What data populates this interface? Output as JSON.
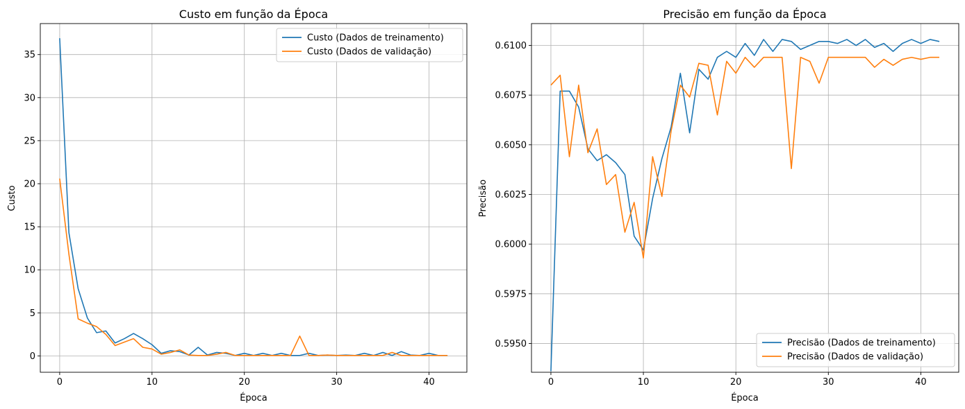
{
  "colors": {
    "train": "#1f77b4",
    "val": "#ff7f0e",
    "grid": "#b0b0b0",
    "axis": "#000000"
  },
  "chart_data": [
    {
      "type": "line",
      "title": "Custo em função da Época",
      "xlabel": "Época",
      "ylabel": "Custo",
      "xlim": [
        -2.1,
        44.1
      ],
      "ylim": [
        -1.9,
        38.6
      ],
      "xticks": [
        0,
        10,
        20,
        30,
        40
      ],
      "yticks": [
        0,
        5,
        10,
        15,
        20,
        25,
        30,
        35
      ],
      "grid": true,
      "legend_position": "upper right",
      "series": [
        {
          "name": "Custo (Dados de treinamento)",
          "color": "#1f77b4",
          "x": [
            0,
            1,
            2,
            3,
            4,
            5,
            6,
            7,
            8,
            9,
            10,
            11,
            12,
            13,
            14,
            15,
            16,
            17,
            18,
            19,
            20,
            21,
            22,
            23,
            24,
            25,
            26,
            27,
            28,
            29,
            30,
            31,
            32,
            33,
            34,
            35,
            36,
            37,
            38,
            39,
            40,
            41,
            42
          ],
          "y": [
            36.9,
            14.3,
            7.8,
            4.4,
            2.7,
            2.9,
            1.5,
            2.0,
            2.6,
            2.0,
            1.3,
            0.3,
            0.6,
            0.5,
            0.1,
            1.0,
            0.1,
            0.4,
            0.3,
            0.05,
            0.3,
            0.05,
            0.3,
            0.05,
            0.3,
            0.05,
            0.05,
            0.3,
            0.05,
            0.1,
            0.05,
            0.1,
            0.05,
            0.3,
            0.05,
            0.4,
            0.05,
            0.5,
            0.1,
            0.05,
            0.3,
            0.05,
            0.05
          ]
        },
        {
          "name": "Custo (Dados de validação)",
          "color": "#ff7f0e",
          "x": [
            0,
            1,
            2,
            3,
            4,
            5,
            6,
            7,
            8,
            9,
            10,
            11,
            12,
            13,
            14,
            15,
            16,
            17,
            18,
            19,
            20,
            21,
            22,
            23,
            24,
            25,
            26,
            27,
            28,
            29,
            30,
            31,
            32,
            33,
            34,
            35,
            36,
            37,
            38,
            39,
            40,
            41,
            42
          ],
          "y": [
            20.6,
            11.8,
            4.3,
            3.8,
            3.4,
            2.5,
            1.2,
            1.6,
            2.0,
            1.0,
            0.8,
            0.2,
            0.4,
            0.7,
            0.1,
            0.05,
            0.05,
            0.2,
            0.4,
            0.05,
            0.05,
            0.05,
            0.05,
            0.05,
            0.05,
            0.05,
            2.3,
            0.05,
            0.05,
            0.1,
            0.05,
            0.05,
            0.05,
            0.05,
            0.05,
            0.05,
            0.4,
            0.05,
            0.05,
            0.05,
            0.05,
            0.05,
            0.05
          ]
        }
      ]
    },
    {
      "type": "line",
      "title": "Precisão em função da Época",
      "xlabel": "Época",
      "ylabel": "Precisão",
      "xlim": [
        -2.1,
        44.1
      ],
      "ylim": [
        0.59355,
        0.6111
      ],
      "xticks": [
        0,
        10,
        20,
        30,
        40
      ],
      "yticks": [
        0.595,
        0.5975,
        0.6,
        0.6025,
        0.605,
        0.6075,
        0.61
      ],
      "ytick_labels": [
        "0.5950",
        "0.5975",
        "0.6000",
        "0.6025",
        "0.6050",
        "0.6075",
        "0.6100"
      ],
      "grid": true,
      "legend_position": "lower right",
      "series": [
        {
          "name": "Precisão (Dados de treinamento)",
          "color": "#1f77b4",
          "x": [
            0,
            1,
            2,
            3,
            4,
            5,
            6,
            7,
            8,
            9,
            10,
            11,
            12,
            13,
            14,
            15,
            16,
            17,
            18,
            19,
            20,
            21,
            22,
            23,
            24,
            25,
            26,
            27,
            28,
            29,
            30,
            31,
            32,
            33,
            34,
            35,
            36,
            37,
            38,
            39,
            40,
            41,
            42
          ],
          "y": [
            0.5936,
            0.6077,
            0.6077,
            0.6069,
            0.6048,
            0.6042,
            0.6045,
            0.6041,
            0.6035,
            0.6004,
            0.5997,
            0.6023,
            0.6043,
            0.6059,
            0.6086,
            0.6056,
            0.6088,
            0.6083,
            0.6094,
            0.6097,
            0.6094,
            0.6101,
            0.6095,
            0.6103,
            0.6097,
            0.6103,
            0.6102,
            0.6098,
            0.61,
            0.6102,
            0.6102,
            0.6101,
            0.6103,
            0.61,
            0.6103,
            0.6099,
            0.6101,
            0.6097,
            0.6101,
            0.6103,
            0.6101,
            0.6103,
            0.6102
          ]
        },
        {
          "name": "Precisão (Dados de validação)",
          "color": "#ff7f0e",
          "x": [
            0,
            1,
            2,
            3,
            4,
            5,
            6,
            7,
            8,
            9,
            10,
            11,
            12,
            13,
            14,
            15,
            16,
            17,
            18,
            19,
            20,
            21,
            22,
            23,
            24,
            25,
            26,
            27,
            28,
            29,
            30,
            31,
            32,
            33,
            34,
            35,
            36,
            37,
            38,
            39,
            40,
            41,
            42
          ],
          "y": [
            0.608,
            0.6085,
            0.6044,
            0.608,
            0.6046,
            0.6058,
            0.603,
            0.6035,
            0.6006,
            0.6021,
            0.5993,
            0.6044,
            0.6024,
            0.6057,
            0.608,
            0.6074,
            0.6091,
            0.609,
            0.6065,
            0.6092,
            0.6086,
            0.6094,
            0.6089,
            0.6094,
            0.6094,
            0.6094,
            0.6038,
            0.6094,
            0.6092,
            0.6081,
            0.6094,
            0.6094,
            0.6094,
            0.6094,
            0.6094,
            0.6089,
            0.6093,
            0.609,
            0.6093,
            0.6094,
            0.6093,
            0.6094,
            0.6094
          ]
        }
      ]
    }
  ]
}
